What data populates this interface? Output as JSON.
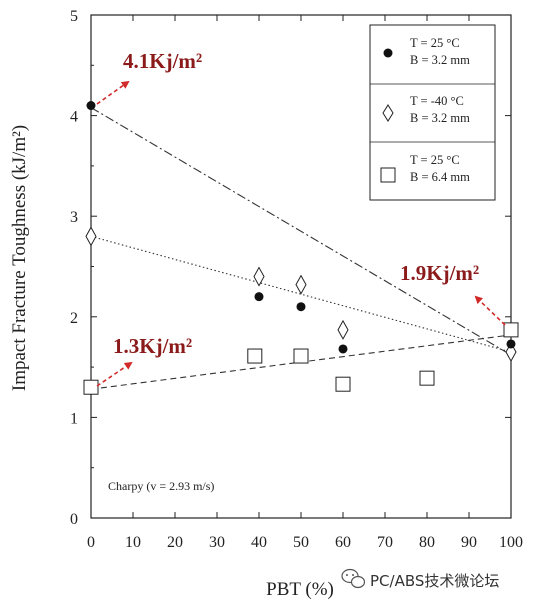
{
  "chart_data": {
    "type": "scatter",
    "xlabel": "PBT (%)",
    "ylabel": "Impact Fracture Toughness (kJ/m²)",
    "xlim": [
      0,
      100
    ],
    "ylim": [
      0,
      5
    ],
    "x_ticks": [
      "0",
      "10",
      "20",
      "30",
      "40",
      "50",
      "60",
      "70",
      "80",
      "90",
      "100"
    ],
    "y_ticks": [
      "0",
      "1",
      "2",
      "3",
      "4",
      "5"
    ],
    "grid": false,
    "legend_position": "top-right",
    "series": [
      {
        "legend_line1": "T = 25 °C",
        "legend_line2": "B = 3.2 mm",
        "marker": "filled-circle",
        "line_style": "dash-dot",
        "points": [
          [
            0,
            4.1
          ],
          [
            40,
            2.2
          ],
          [
            50,
            2.1
          ],
          [
            60,
            1.68
          ],
          [
            100,
            1.73
          ]
        ],
        "trend": [
          [
            0,
            4.08
          ],
          [
            100,
            1.62
          ]
        ]
      },
      {
        "legend_line1": "T = -40 °C",
        "legend_line2": "B = 3.2 mm",
        "marker": "open-diamond",
        "line_style": "dotted",
        "points": [
          [
            0,
            2.8
          ],
          [
            40,
            2.4
          ],
          [
            50,
            2.32
          ],
          [
            60,
            1.87
          ],
          [
            100,
            1.65
          ]
        ],
        "trend": [
          [
            0,
            2.8
          ],
          [
            100,
            1.65
          ]
        ]
      },
      {
        "legend_line1": "T = 25 °C",
        "legend_line2": "B = 6.4 mm",
        "marker": "open-square",
        "line_style": "dashed",
        "points": [
          [
            0,
            1.3
          ],
          [
            39,
            1.61
          ],
          [
            50,
            1.61
          ],
          [
            60,
            1.33
          ],
          [
            80,
            1.39
          ],
          [
            100,
            1.87
          ]
        ],
        "trend": [
          [
            0,
            1.28
          ],
          [
            100,
            1.82
          ]
        ]
      }
    ],
    "note": "Charpy (v = 2.93 m/s)",
    "annotations": [
      {
        "text": "4.1Kj/m²",
        "at": [
          0,
          4.1
        ]
      },
      {
        "text": "1.3Kj/m²",
        "at": [
          0,
          1.3
        ]
      },
      {
        "text": "1.9Kj/m²",
        "at": [
          100,
          1.87
        ]
      }
    ]
  },
  "watermark": "PC/ABS技术微论坛",
  "colors": {
    "axis": "#222222",
    "annotation": "#8b1a1a",
    "annotation_arrow": "#d22a2a"
  }
}
